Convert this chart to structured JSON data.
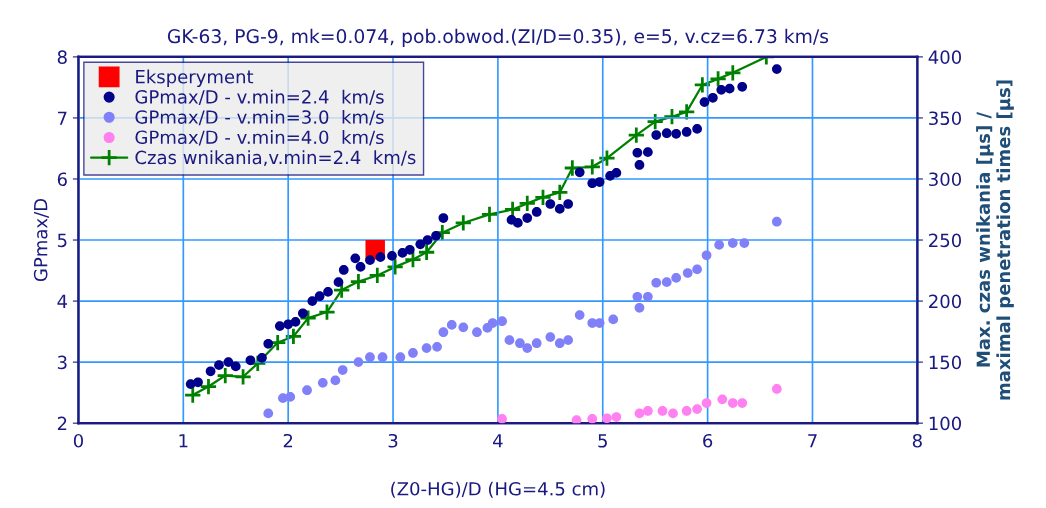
{
  "chart_data": {
    "type": "scatter",
    "title": "GK-63, PG-9, mk=0.074, pob.obwod.(ZI/D=0.35), e=5, v.cz=6.73 km/s",
    "xlabel": "(Z0-HG)/D (HG=4.5 cm)",
    "ylabel": "GPmax/D",
    "y2label": "Max. czas wnikania [µs] /\nmaximal penetration times [µs]",
    "xlim": [
      0,
      8
    ],
    "xticks": [
      0,
      1,
      2,
      3,
      4,
      5,
      6,
      7,
      8
    ],
    "ylim": [
      2,
      8
    ],
    "yticks": [
      2,
      3,
      4,
      5,
      6,
      7,
      8
    ],
    "y2lim": [
      100,
      400
    ],
    "y2ticks": [
      100,
      150,
      200,
      250,
      300,
      350,
      400
    ],
    "grid": true,
    "legend": "top left",
    "series": [
      {
        "name": "Eksperyment",
        "marker": "square",
        "color": "#ff0000",
        "x": [
          2.83
        ],
        "values": [
          4.84
        ]
      },
      {
        "name": "GPmax/D - v.min=2.4  km/s",
        "marker": "circle",
        "color": "#00008b",
        "x": [
          1.07,
          1.14,
          1.26,
          1.34,
          1.43,
          1.5,
          1.64,
          1.75,
          1.81,
          1.92,
          2.0,
          2.07,
          2.14,
          2.23,
          2.3,
          2.38,
          2.48,
          2.53,
          2.64,
          2.69,
          2.78,
          2.88,
          2.99,
          3.09,
          3.16,
          3.26,
          3.33,
          3.41,
          3.48,
          4.13,
          4.19,
          4.28,
          4.37,
          4.5,
          4.59,
          4.67,
          4.78,
          4.9,
          4.97,
          5.07,
          5.13,
          5.33,
          5.35,
          5.43,
          5.51,
          5.61,
          5.7,
          5.8,
          5.9,
          5.97,
          6.05,
          6.13,
          6.21,
          6.33,
          6.66
        ],
        "values": [
          2.64,
          2.67,
          2.85,
          2.95,
          3.0,
          2.93,
          3.03,
          3.07,
          3.3,
          3.59,
          3.62,
          3.66,
          3.8,
          4.0,
          4.08,
          4.15,
          4.31,
          4.51,
          4.7,
          4.56,
          4.67,
          4.72,
          4.74,
          4.79,
          4.84,
          4.93,
          5.0,
          5.07,
          5.36,
          5.33,
          5.28,
          5.36,
          5.46,
          5.59,
          5.51,
          5.59,
          6.11,
          5.93,
          5.95,
          6.05,
          6.1,
          6.43,
          6.23,
          6.44,
          6.72,
          6.75,
          6.74,
          6.77,
          6.82,
          7.26,
          7.33,
          7.46,
          7.48,
          7.51,
          7.8
        ]
      },
      {
        "name": "GPmax/D - v.min=3.0  km/s",
        "marker": "circle",
        "color": "#8080f8",
        "x": [
          1.81,
          1.95,
          2.02,
          2.18,
          2.33,
          2.45,
          2.52,
          2.67,
          2.78,
          2.9,
          3.07,
          3.19,
          3.32,
          3.42,
          3.48,
          3.56,
          3.67,
          3.8,
          3.9,
          3.95,
          4.04,
          4.11,
          4.21,
          4.28,
          4.37,
          4.5,
          4.59,
          4.67,
          4.78,
          4.9,
          4.97,
          5.1,
          5.33,
          5.35,
          5.43,
          5.51,
          5.61,
          5.7,
          5.81,
          5.9,
          5.99,
          6.11,
          6.24,
          6.35,
          6.66
        ],
        "values": [
          2.16,
          2.41,
          2.43,
          2.54,
          2.66,
          2.7,
          2.87,
          3.0,
          3.08,
          3.08,
          3.08,
          3.15,
          3.23,
          3.25,
          3.49,
          3.61,
          3.57,
          3.49,
          3.56,
          3.64,
          3.67,
          3.36,
          3.31,
          3.23,
          3.31,
          3.41,
          3.31,
          3.36,
          3.77,
          3.64,
          3.64,
          3.7,
          4.07,
          3.89,
          4.07,
          4.3,
          4.31,
          4.38,
          4.46,
          4.52,
          4.75,
          4.92,
          4.95,
          4.95,
          5.3
        ]
      },
      {
        "name": "GPmax/D - v.min=4.0  km/s",
        "marker": "circle",
        "color": "#ff80f0",
        "x": [
          4.04,
          4.75,
          4.9,
          5.04,
          5.13,
          5.35,
          5.43,
          5.57,
          5.67,
          5.8,
          5.9,
          5.99,
          6.14,
          6.24,
          6.33,
          6.66
        ],
        "values": [
          2.07,
          2.05,
          2.07,
          2.08,
          2.1,
          2.16,
          2.2,
          2.2,
          2.16,
          2.2,
          2.23,
          2.33,
          2.39,
          2.33,
          2.33,
          2.56
        ]
      },
      {
        "name": "Czas wnikania,v.min=2.4  km/s",
        "type": "line",
        "axis": "y2",
        "marker": "cross",
        "color": "#008000",
        "x": [
          1.09,
          1.24,
          1.4,
          1.57,
          1.71,
          1.9,
          2.05,
          2.19,
          2.37,
          2.51,
          2.67,
          2.85,
          3.02,
          3.19,
          3.32,
          3.47,
          3.67,
          3.92,
          4.14,
          4.28,
          4.43,
          4.59,
          4.71,
          4.9,
          5.04,
          5.32,
          5.5,
          5.66,
          5.8,
          5.95,
          6.1,
          6.24,
          6.56
        ],
        "values": [
          123,
          130,
          139,
          138,
          149,
          166,
          171,
          186,
          191,
          209,
          216,
          221,
          228,
          234,
          240,
          256,
          264,
          271,
          275,
          280,
          285,
          289,
          309,
          310,
          317,
          336,
          347,
          351,
          355,
          377,
          382,
          387,
          400
        ]
      }
    ]
  }
}
